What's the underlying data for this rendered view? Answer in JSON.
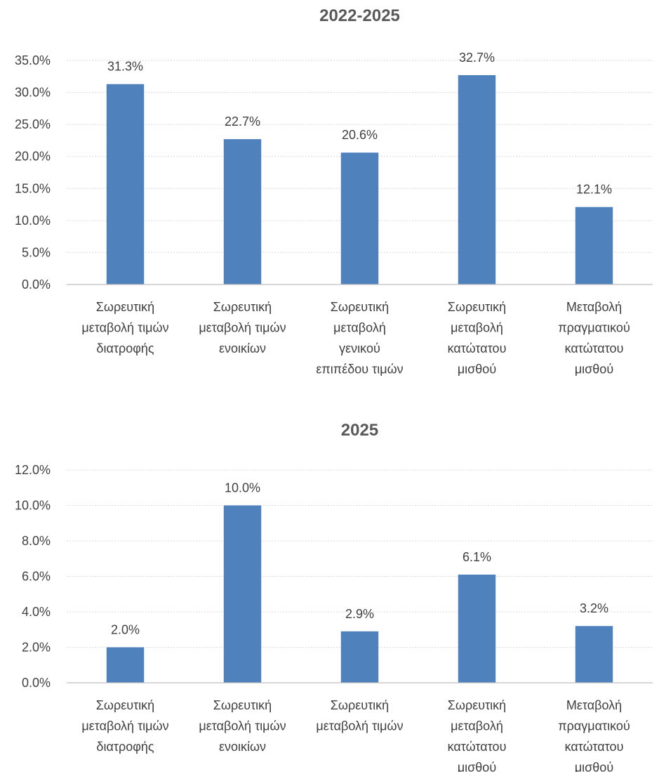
{
  "colors": {
    "bar": "#4f81bd",
    "grid": "#d9d9d9",
    "axis": "#bfbfbf",
    "text": "#404040"
  },
  "chart_data": [
    {
      "type": "bar",
      "title": "2022-2025",
      "categories": [
        [
          "Σωρευτική",
          "μεταβολή τιμών",
          "διατροφής"
        ],
        [
          "Σωρευτική",
          "μεταβολή τιμών",
          "ενοικίων"
        ],
        [
          "Σωρευτική",
          "μεταβολή",
          "γενικού",
          "επιπέδου τιμών"
        ],
        [
          "Σωρευτική",
          "μεταβολή",
          "κατώτατου",
          "μισθού"
        ],
        [
          "Μεταβολή",
          "πραγματικού",
          "κατώτατου",
          "μισθού"
        ]
      ],
      "values": [
        31.3,
        22.7,
        20.6,
        32.7,
        12.1
      ],
      "value_labels": [
        "31.3%",
        "22.7%",
        "20.6%",
        "32.7%",
        "12.1%"
      ],
      "ylim": [
        0,
        35
      ],
      "yticks": [
        0,
        5,
        10,
        15,
        20,
        25,
        30,
        35
      ],
      "ytick_labels": [
        "0.0%",
        "5.0%",
        "10.0%",
        "15.0%",
        "20.0%",
        "25.0%",
        "30.0%",
        "35.0%"
      ],
      "grid": true,
      "legend": "none"
    },
    {
      "type": "bar",
      "title": "2025",
      "categories": [
        [
          "Σωρευτική",
          "μεταβολή τιμών",
          "διατροφής"
        ],
        [
          "Σωρευτική",
          "μεταβολή τιμών",
          "ενοικίων"
        ],
        [
          "Σωρευτική",
          "μεταβολή τιμών"
        ],
        [
          "Σωρευτική",
          "μεταβολή",
          "κατώτατου",
          "μισθού"
        ],
        [
          "Μεταβολή",
          "πραγματικού",
          "κατώτατου",
          "μισθού"
        ]
      ],
      "values": [
        2.0,
        10.0,
        2.9,
        6.1,
        3.2
      ],
      "value_labels": [
        "2.0%",
        "10.0%",
        "2.9%",
        "6.1%",
        "3.2%"
      ],
      "ylim": [
        0,
        12
      ],
      "yticks": [
        0,
        2,
        4,
        6,
        8,
        10,
        12
      ],
      "ytick_labels": [
        "0.0%",
        "2.0%",
        "4.0%",
        "6.0%",
        "8.0%",
        "10.0%",
        "12.0%"
      ],
      "grid": true,
      "legend": "none"
    }
  ]
}
